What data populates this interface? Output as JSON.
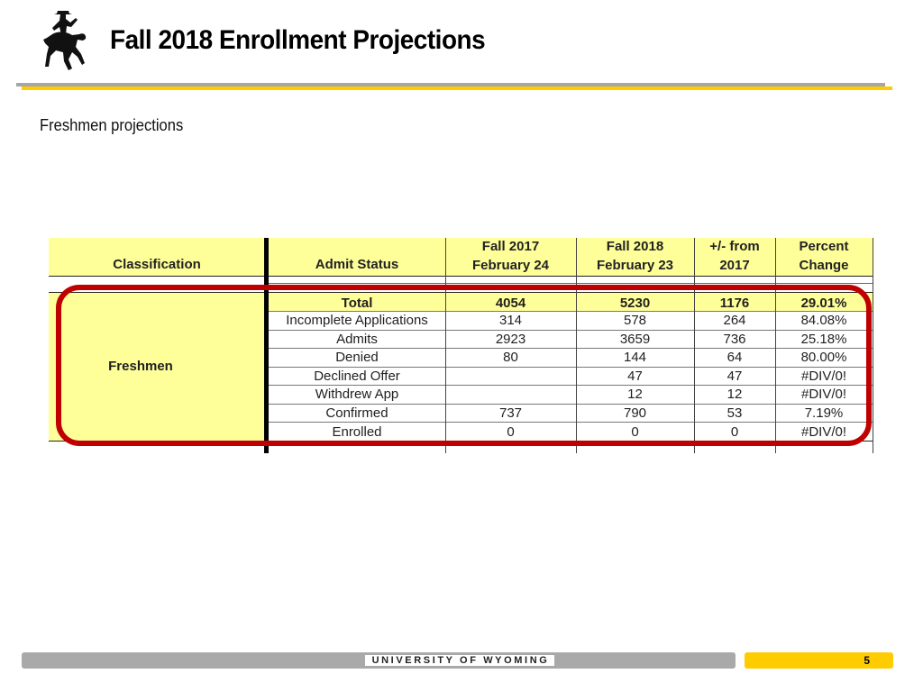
{
  "header": {
    "title": "Fall 2018 Enrollment Projections",
    "logo_icon": "bucking-horse-rider-icon"
  },
  "subtitle": "Freshmen projections",
  "table": {
    "columns": {
      "classification": "Classification",
      "admit_status": "Admit Status",
      "fall2017": [
        "Fall 2017",
        "February 24"
      ],
      "fall2018": [
        "Fall 2018",
        "February 23"
      ],
      "change": [
        "+/- from",
        "2017"
      ],
      "percent": [
        "Percent",
        "Change"
      ]
    },
    "group_label": "Freshmen",
    "rows": [
      {
        "status": "Total",
        "fall2017": "4054",
        "fall2018": "5230",
        "change": "1176",
        "percent": "29.01%"
      },
      {
        "status": "Incomplete Applications",
        "fall2017": "314",
        "fall2018": "578",
        "change": "264",
        "percent": "84.08%"
      },
      {
        "status": "Admits",
        "fall2017": "2923",
        "fall2018": "3659",
        "change": "736",
        "percent": "25.18%"
      },
      {
        "status": "Denied",
        "fall2017": "80",
        "fall2018": "144",
        "change": "64",
        "percent": "80.00%"
      },
      {
        "status": "Declined Offer",
        "fall2017": "",
        "fall2018": "47",
        "change": "47",
        "percent": "#DIV/0!"
      },
      {
        "status": "Withdrew App",
        "fall2017": "",
        "fall2018": "12",
        "change": "12",
        "percent": "#DIV/0!"
      },
      {
        "status": "Confirmed",
        "fall2017": "737",
        "fall2018": "790",
        "change": "53",
        "percent": "7.19%"
      },
      {
        "status": "Enrolled",
        "fall2017": "0",
        "fall2018": "0",
        "change": "0",
        "percent": "#DIV/0!"
      }
    ],
    "colors": {
      "header_fill": "#ffff99",
      "highlight_outline": "#c00000"
    }
  },
  "footer": {
    "university": "UNIVERSITY OF WYOMING",
    "page_number": "5",
    "accent": "#ffcc00"
  }
}
